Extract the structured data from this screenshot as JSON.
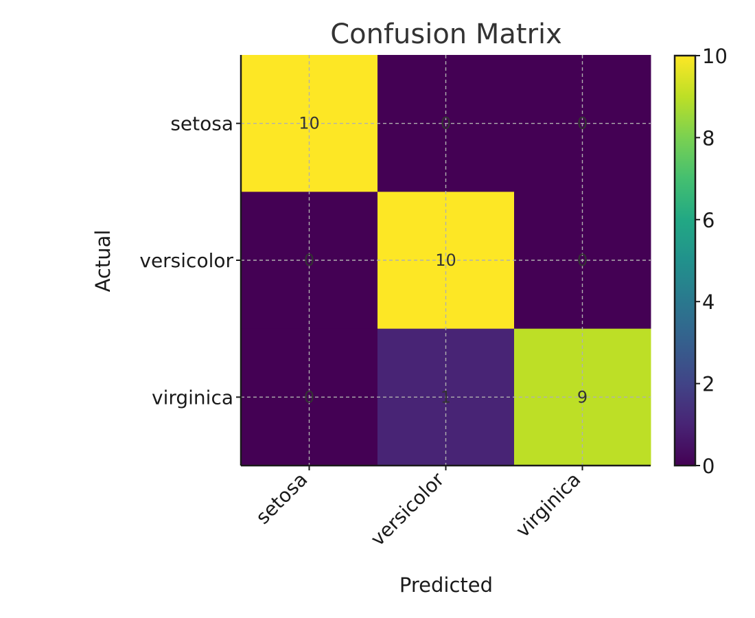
{
  "chart_data": {
    "type": "heatmap",
    "title": "Confusion Matrix",
    "xlabel": "Predicted",
    "ylabel": "Actual",
    "x_categories": [
      "setosa",
      "versicolor",
      "virginica"
    ],
    "y_categories": [
      "setosa",
      "versicolor",
      "virginica"
    ],
    "values": [
      [
        10,
        0,
        0
      ],
      [
        0,
        10,
        0
      ],
      [
        0,
        1,
        9
      ]
    ],
    "colormap": "viridis",
    "colorbar": {
      "min": 0,
      "max": 10,
      "ticks": [
        0,
        2,
        4,
        6,
        8,
        10
      ]
    },
    "grid": true,
    "colors": {
      "low": "#440154",
      "high": "#fde725"
    }
  }
}
